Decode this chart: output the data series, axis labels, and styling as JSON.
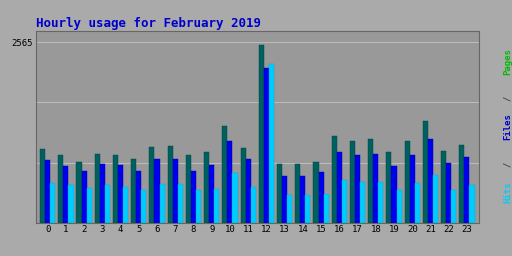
{
  "title": "Hourly usage for February 2019",
  "hours": [
    0,
    1,
    2,
    3,
    4,
    5,
    6,
    7,
    8,
    9,
    10,
    11,
    12,
    13,
    14,
    15,
    16,
    17,
    18,
    19,
    20,
    21,
    22,
    23
  ],
  "pages": [
    1050,
    960,
    870,
    980,
    960,
    910,
    1080,
    1090,
    960,
    1010,
    1380,
    1060,
    2530,
    830,
    830,
    860,
    1230,
    1160,
    1190,
    1000,
    1160,
    1450,
    1020,
    1110
  ],
  "files": [
    890,
    800,
    740,
    830,
    820,
    740,
    900,
    910,
    740,
    820,
    1160,
    900,
    2200,
    660,
    670,
    720,
    1010,
    970,
    980,
    810,
    970,
    1190,
    850,
    930
  ],
  "hits": [
    560,
    540,
    500,
    540,
    510,
    460,
    550,
    550,
    470,
    480,
    700,
    510,
    2250,
    390,
    390,
    410,
    610,
    580,
    580,
    470,
    570,
    680,
    470,
    540
  ],
  "color_pages": "#006060",
  "color_files": "#0000ee",
  "color_hits": "#00ccff",
  "bg_color": "#aaaaaa",
  "plot_bg": "#999999",
  "title_color": "#0000cc",
  "ylim_max": 2730,
  "grid_lines": [
    855,
    1710,
    2565
  ],
  "ytick_val": 2565,
  "bar_width": 0.28
}
